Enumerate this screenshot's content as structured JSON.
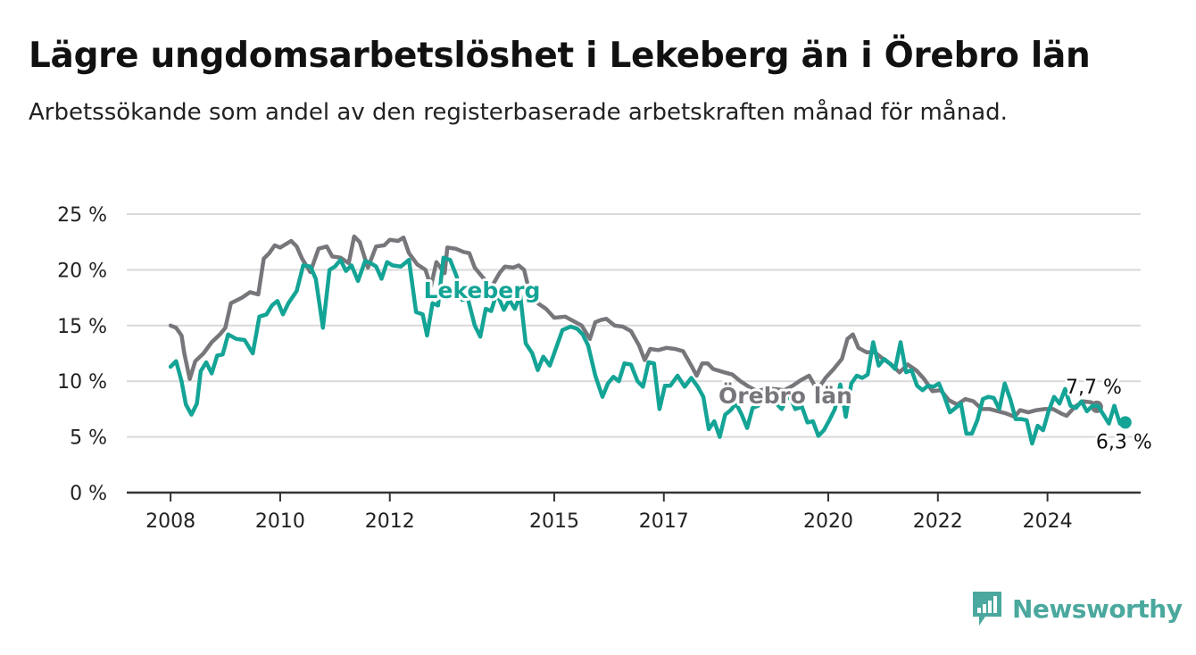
{
  "header": {
    "title": "Lägre ungdomsarbetslöshet i Lekeberg än i Örebro län",
    "subtitle": "Arbetssökande som andel av den registerbaserade arbetskraften månad för månad."
  },
  "brand": {
    "name": "Newsworthy",
    "icon": "newsworthy-chart-icon",
    "color": "#4aa89e"
  },
  "chart_data": {
    "type": "line",
    "y_ticks": [
      "0 %",
      "5 %",
      "10 %",
      "15 %",
      "20 %",
      "25 %"
    ],
    "y_tick_values": [
      0,
      5,
      10,
      15,
      20,
      25
    ],
    "x_ticks": [
      "2008",
      "2010",
      "2012",
      "2015",
      "2017",
      "2020",
      "2022",
      "2024"
    ],
    "x_tick_values": [
      2008,
      2010,
      2012,
      2015,
      2017,
      2020,
      2022,
      2024
    ],
    "ylim": [
      0,
      25
    ],
    "xlim": [
      2007.2,
      2025.7
    ],
    "grid": true,
    "legend": "inline labels",
    "series": [
      {
        "name": "Örebro län",
        "color": "#77767b",
        "end_label": "7,7 %",
        "points": [
          [
            2008.0,
            15.0
          ],
          [
            2008.1,
            14.8
          ],
          [
            2008.2,
            14.1
          ],
          [
            2008.25,
            12.5
          ],
          [
            2008.35,
            10.2
          ],
          [
            2008.45,
            11.8
          ],
          [
            2008.6,
            12.5
          ],
          [
            2008.75,
            13.5
          ],
          [
            2008.9,
            14.2
          ],
          [
            2009.0,
            14.8
          ],
          [
            2009.1,
            17.0
          ],
          [
            2009.3,
            17.5
          ],
          [
            2009.45,
            18.0
          ],
          [
            2009.6,
            17.8
          ],
          [
            2009.7,
            21.0
          ],
          [
            2009.8,
            21.5
          ],
          [
            2009.9,
            22.2
          ],
          [
            2010.0,
            22.0
          ],
          [
            2010.1,
            22.3
          ],
          [
            2010.2,
            22.6
          ],
          [
            2010.3,
            22.1
          ],
          [
            2010.4,
            21.0
          ],
          [
            2010.55,
            19.8
          ],
          [
            2010.7,
            21.9
          ],
          [
            2010.85,
            22.1
          ],
          [
            2010.95,
            21.2
          ],
          [
            2011.1,
            21.1
          ],
          [
            2011.25,
            20.6
          ],
          [
            2011.35,
            23.0
          ],
          [
            2011.45,
            22.5
          ],
          [
            2011.6,
            20.2
          ],
          [
            2011.75,
            22.1
          ],
          [
            2011.9,
            22.2
          ],
          [
            2012.0,
            22.7
          ],
          [
            2012.15,
            22.6
          ],
          [
            2012.25,
            22.9
          ],
          [
            2012.35,
            21.5
          ],
          [
            2012.5,
            20.5
          ],
          [
            2012.65,
            20.0
          ],
          [
            2012.75,
            18.5
          ],
          [
            2012.85,
            20.7
          ],
          [
            2013.0,
            19.7
          ],
          [
            2013.05,
            22.0
          ],
          [
            2013.2,
            21.9
          ],
          [
            2013.35,
            21.6
          ],
          [
            2013.45,
            21.5
          ],
          [
            2013.55,
            20.2
          ],
          [
            2013.7,
            19.3
          ],
          [
            2013.85,
            18.4
          ],
          [
            2014.0,
            19.7
          ],
          [
            2014.1,
            20.3
          ],
          [
            2014.25,
            20.2
          ],
          [
            2014.35,
            20.4
          ],
          [
            2014.45,
            20.0
          ],
          [
            2014.55,
            18.0
          ],
          [
            2014.7,
            17.0
          ],
          [
            2014.85,
            16.5
          ],
          [
            2015.0,
            15.7
          ],
          [
            2015.2,
            15.8
          ],
          [
            2015.35,
            15.4
          ],
          [
            2015.5,
            15.0
          ],
          [
            2015.65,
            13.8
          ],
          [
            2015.75,
            15.3
          ],
          [
            2015.85,
            15.5
          ],
          [
            2015.95,
            15.6
          ],
          [
            2016.1,
            15.0
          ],
          [
            2016.25,
            14.9
          ],
          [
            2016.4,
            14.5
          ],
          [
            2016.55,
            13.2
          ],
          [
            2016.65,
            11.9
          ],
          [
            2016.75,
            12.9
          ],
          [
            2016.9,
            12.8
          ],
          [
            2017.05,
            13.0
          ],
          [
            2017.2,
            12.9
          ],
          [
            2017.35,
            12.7
          ],
          [
            2017.5,
            11.4
          ],
          [
            2017.6,
            10.5
          ],
          [
            2017.7,
            11.6
          ],
          [
            2017.8,
            11.6
          ],
          [
            2017.9,
            11.1
          ],
          [
            2018.1,
            10.8
          ],
          [
            2018.25,
            10.6
          ],
          [
            2018.4,
            10.0
          ],
          [
            2018.55,
            9.5
          ],
          [
            2018.7,
            9.1
          ],
          [
            2018.85,
            9.3
          ],
          [
            2019.0,
            9.3
          ],
          [
            2019.2,
            9.2
          ],
          [
            2019.35,
            9.6
          ],
          [
            2019.5,
            10.1
          ],
          [
            2019.65,
            10.5
          ],
          [
            2019.8,
            9.2
          ],
          [
            2019.95,
            10.3
          ],
          [
            2020.1,
            11.1
          ],
          [
            2020.25,
            12.0
          ],
          [
            2020.35,
            13.8
          ],
          [
            2020.45,
            14.2
          ],
          [
            2020.55,
            13.0
          ],
          [
            2020.7,
            12.6
          ],
          [
            2020.85,
            12.6
          ],
          [
            2021.0,
            12.0
          ],
          [
            2021.15,
            11.5
          ],
          [
            2021.3,
            10.8
          ],
          [
            2021.45,
            11.5
          ],
          [
            2021.6,
            11.0
          ],
          [
            2021.75,
            10.2
          ],
          [
            2021.9,
            9.1
          ],
          [
            2022.05,
            9.2
          ],
          [
            2022.2,
            8.3
          ],
          [
            2022.35,
            7.9
          ],
          [
            2022.5,
            8.4
          ],
          [
            2022.65,
            8.2
          ],
          [
            2022.8,
            7.5
          ],
          [
            2022.95,
            7.5
          ],
          [
            2023.1,
            7.3
          ],
          [
            2023.25,
            7.1
          ],
          [
            2023.4,
            6.8
          ],
          [
            2023.5,
            7.4
          ],
          [
            2023.65,
            7.2
          ],
          [
            2023.8,
            7.4
          ],
          [
            2023.95,
            7.5
          ],
          [
            2024.1,
            7.5
          ],
          [
            2024.25,
            7.1
          ],
          [
            2024.35,
            6.9
          ],
          [
            2024.5,
            7.7
          ],
          [
            2024.65,
            8.2
          ],
          [
            2024.8,
            8.1
          ],
          [
            2024.9,
            7.7
          ]
        ]
      },
      {
        "name": "Lekeberg",
        "color": "#14a496",
        "end_label": "6,3 %",
        "points": [
          [
            2008.0,
            11.3
          ],
          [
            2008.1,
            11.8
          ],
          [
            2008.2,
            10.0
          ],
          [
            2008.28,
            7.9
          ],
          [
            2008.38,
            7.0
          ],
          [
            2008.48,
            8.0
          ],
          [
            2008.55,
            10.9
          ],
          [
            2008.65,
            11.7
          ],
          [
            2008.75,
            10.7
          ],
          [
            2008.85,
            12.3
          ],
          [
            2008.95,
            12.4
          ],
          [
            2009.05,
            14.2
          ],
          [
            2009.2,
            13.8
          ],
          [
            2009.35,
            13.7
          ],
          [
            2009.5,
            12.5
          ],
          [
            2009.62,
            15.8
          ],
          [
            2009.75,
            16.0
          ],
          [
            2009.85,
            16.8
          ],
          [
            2009.95,
            17.2
          ],
          [
            2010.05,
            16.0
          ],
          [
            2010.15,
            17.0
          ],
          [
            2010.3,
            18.1
          ],
          [
            2010.42,
            20.4
          ],
          [
            2010.55,
            20.3
          ],
          [
            2010.65,
            19.2
          ],
          [
            2010.78,
            14.8
          ],
          [
            2010.9,
            20.0
          ],
          [
            2011.0,
            20.3
          ],
          [
            2011.1,
            20.9
          ],
          [
            2011.2,
            19.9
          ],
          [
            2011.3,
            20.4
          ],
          [
            2011.42,
            19.0
          ],
          [
            2011.55,
            20.8
          ],
          [
            2011.65,
            20.6
          ],
          [
            2011.75,
            20.3
          ],
          [
            2011.85,
            19.2
          ],
          [
            2011.95,
            20.7
          ],
          [
            2012.05,
            20.4
          ],
          [
            2012.2,
            20.3
          ],
          [
            2012.35,
            20.9
          ],
          [
            2012.48,
            16.2
          ],
          [
            2012.6,
            16.0
          ],
          [
            2012.68,
            14.1
          ],
          [
            2012.78,
            17.0
          ],
          [
            2012.88,
            16.8
          ],
          [
            2012.98,
            21.1
          ],
          [
            2013.1,
            20.9
          ],
          [
            2013.22,
            19.4
          ],
          [
            2013.32,
            17.3
          ],
          [
            2013.42,
            17.5
          ],
          [
            2013.55,
            15.0
          ],
          [
            2013.65,
            14.0
          ],
          [
            2013.75,
            16.5
          ],
          [
            2013.85,
            16.3
          ],
          [
            2013.95,
            17.9
          ],
          [
            2014.08,
            16.4
          ],
          [
            2014.18,
            17.3
          ],
          [
            2014.28,
            16.5
          ],
          [
            2014.38,
            17.7
          ],
          [
            2014.48,
            13.4
          ],
          [
            2014.6,
            12.5
          ],
          [
            2014.7,
            11.0
          ],
          [
            2014.8,
            12.2
          ],
          [
            2014.92,
            11.4
          ],
          [
            2015.02,
            12.8
          ],
          [
            2015.15,
            14.6
          ],
          [
            2015.3,
            14.9
          ],
          [
            2015.42,
            14.7
          ],
          [
            2015.52,
            14.2
          ],
          [
            2015.62,
            13.2
          ],
          [
            2015.75,
            10.5
          ],
          [
            2015.88,
            8.6
          ],
          [
            2015.98,
            9.8
          ],
          [
            2016.08,
            10.4
          ],
          [
            2016.18,
            10.0
          ],
          [
            2016.28,
            11.6
          ],
          [
            2016.4,
            11.5
          ],
          [
            2016.52,
            10.0
          ],
          [
            2016.62,
            9.5
          ],
          [
            2016.72,
            11.7
          ],
          [
            2016.82,
            11.6
          ],
          [
            2016.92,
            7.5
          ],
          [
            2017.02,
            9.6
          ],
          [
            2017.12,
            9.6
          ],
          [
            2017.25,
            10.5
          ],
          [
            2017.38,
            9.5
          ],
          [
            2017.5,
            10.3
          ],
          [
            2017.62,
            9.5
          ],
          [
            2017.72,
            8.6
          ],
          [
            2017.82,
            5.7
          ],
          [
            2017.92,
            6.4
          ],
          [
            2018.02,
            5.0
          ],
          [
            2018.12,
            7.0
          ],
          [
            2018.22,
            7.4
          ],
          [
            2018.32,
            8.0
          ],
          [
            2018.42,
            7.0
          ],
          [
            2018.52,
            5.8
          ],
          [
            2018.62,
            7.6
          ],
          [
            2018.72,
            7.8
          ],
          [
            2018.85,
            9.3
          ],
          [
            2018.95,
            8.7
          ],
          [
            2019.05,
            8.0
          ],
          [
            2019.15,
            7.5
          ],
          [
            2019.28,
            8.8
          ],
          [
            2019.4,
            7.5
          ],
          [
            2019.52,
            7.7
          ],
          [
            2019.62,
            6.3
          ],
          [
            2019.72,
            6.4
          ],
          [
            2019.82,
            5.1
          ],
          [
            2019.92,
            5.6
          ],
          [
            2020.02,
            6.5
          ],
          [
            2020.12,
            7.5
          ],
          [
            2020.22,
            9.7
          ],
          [
            2020.32,
            6.8
          ],
          [
            2020.42,
            9.8
          ],
          [
            2020.52,
            10.5
          ],
          [
            2020.62,
            10.3
          ],
          [
            2020.72,
            10.6
          ],
          [
            2020.82,
            13.5
          ],
          [
            2020.92,
            11.4
          ],
          [
            2021.02,
            12.0
          ],
          [
            2021.12,
            11.6
          ],
          [
            2021.22,
            11.1
          ],
          [
            2021.32,
            13.5
          ],
          [
            2021.42,
            10.8
          ],
          [
            2021.52,
            11.0
          ],
          [
            2021.62,
            9.6
          ],
          [
            2021.72,
            9.2
          ],
          [
            2021.82,
            9.6
          ],
          [
            2021.92,
            9.5
          ],
          [
            2022.02,
            9.8
          ],
          [
            2022.12,
            8.6
          ],
          [
            2022.22,
            7.2
          ],
          [
            2022.32,
            7.6
          ],
          [
            2022.42,
            8.0
          ],
          [
            2022.52,
            5.3
          ],
          [
            2022.62,
            5.3
          ],
          [
            2022.72,
            6.5
          ],
          [
            2022.82,
            8.4
          ],
          [
            2022.92,
            8.6
          ],
          [
            2023.02,
            8.5
          ],
          [
            2023.12,
            7.5
          ],
          [
            2023.22,
            9.8
          ],
          [
            2023.32,
            8.4
          ],
          [
            2023.42,
            6.6
          ],
          [
            2023.52,
            6.6
          ],
          [
            2023.62,
            6.5
          ],
          [
            2023.72,
            4.4
          ],
          [
            2023.82,
            6.0
          ],
          [
            2023.92,
            5.6
          ],
          [
            2024.02,
            7.3
          ],
          [
            2024.12,
            8.6
          ],
          [
            2024.22,
            8.0
          ],
          [
            2024.32,
            9.3
          ],
          [
            2024.42,
            7.8
          ],
          [
            2024.52,
            7.6
          ],
          [
            2024.62,
            8.2
          ],
          [
            2024.72,
            7.3
          ],
          [
            2024.82,
            7.8
          ],
          [
            2024.92,
            7.8
          ],
          [
            2025.02,
            7.0
          ],
          [
            2025.12,
            6.2
          ],
          [
            2025.22,
            7.8
          ],
          [
            2025.32,
            6.2
          ],
          [
            2025.42,
            6.3
          ]
        ]
      }
    ]
  }
}
